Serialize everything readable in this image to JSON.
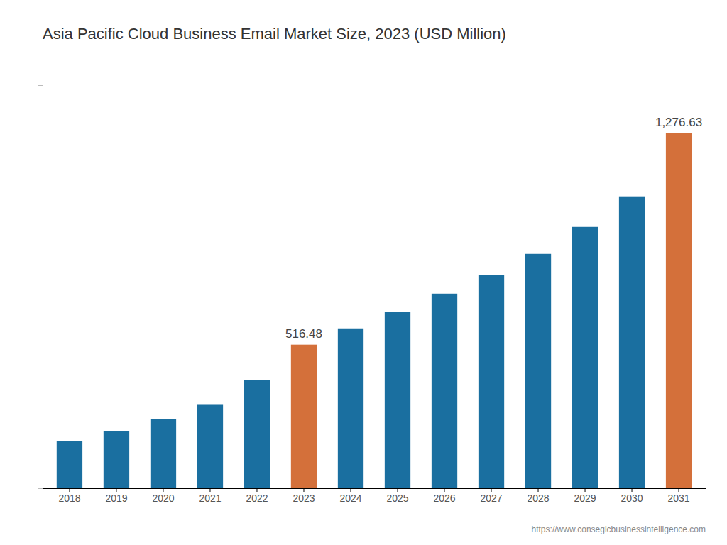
{
  "chart_data": {
    "type": "bar",
    "title": "Asia Pacific Cloud Business Email Market Size, 2023 (USD Million)",
    "categories": [
      "2018",
      "2019",
      "2020",
      "2021",
      "2022",
      "2023",
      "2024",
      "2025",
      "2026",
      "2027",
      "2028",
      "2029",
      "2030",
      "2031"
    ],
    "values": [
      170,
      205,
      250,
      300,
      390,
      516.48,
      575,
      635,
      700,
      768,
      843,
      940,
      1050,
      1276.63
    ],
    "value_labels": [
      null,
      null,
      null,
      null,
      null,
      "516.48",
      null,
      null,
      null,
      null,
      null,
      null,
      null,
      "1,276.63"
    ],
    "data_labels": true,
    "colors": [
      "#1a6fa0",
      "#1a6fa0",
      "#1a6fa0",
      "#1a6fa0",
      "#1a6fa0",
      "#d4703a",
      "#1a6fa0",
      "#1a6fa0",
      "#1a6fa0",
      "#1a6fa0",
      "#1a6fa0",
      "#1a6fa0",
      "#1a6fa0",
      "#d4703a"
    ],
    "ylim": [
      0,
      1450
    ],
    "tick_labels": "x",
    "grid": false,
    "annotations": [
      "https://www.consegicbusinessintelligence.com"
    ]
  }
}
